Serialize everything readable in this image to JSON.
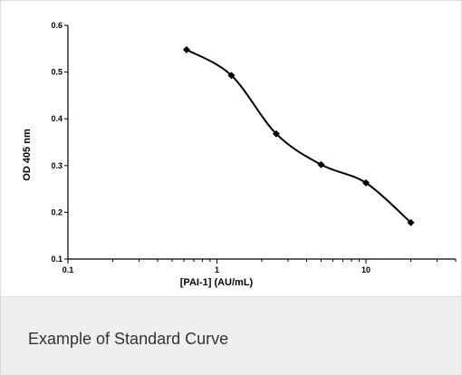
{
  "caption": "Example of Standard Curve",
  "chart_data": {
    "type": "line",
    "xscale": "log",
    "xlim": [
      0.1,
      40
    ],
    "ylim": [
      0.1,
      0.6
    ],
    "xticks": [
      0.1,
      1,
      10
    ],
    "xtick_labels": [
      "0.1",
      "1",
      "10"
    ],
    "yticks": [
      0.1,
      0.2,
      0.3,
      0.4,
      0.5,
      0.6
    ],
    "ytick_labels": [
      "0.1",
      "0.2",
      "0.3",
      "0.4",
      "0.5",
      "0.6"
    ],
    "xlabel": "[PAI-1] (AU/mL)",
    "ylabel": "OD 405 nm",
    "grid": false,
    "line_style": "smooth",
    "marker": "diamond",
    "color": "#000000",
    "series": [
      {
        "x": [
          0.625,
          1.25,
          2.5,
          5,
          10,
          20
        ],
        "y": [
          0.548,
          0.493,
          0.368,
          0.302,
          0.263,
          0.178
        ]
      }
    ]
  }
}
